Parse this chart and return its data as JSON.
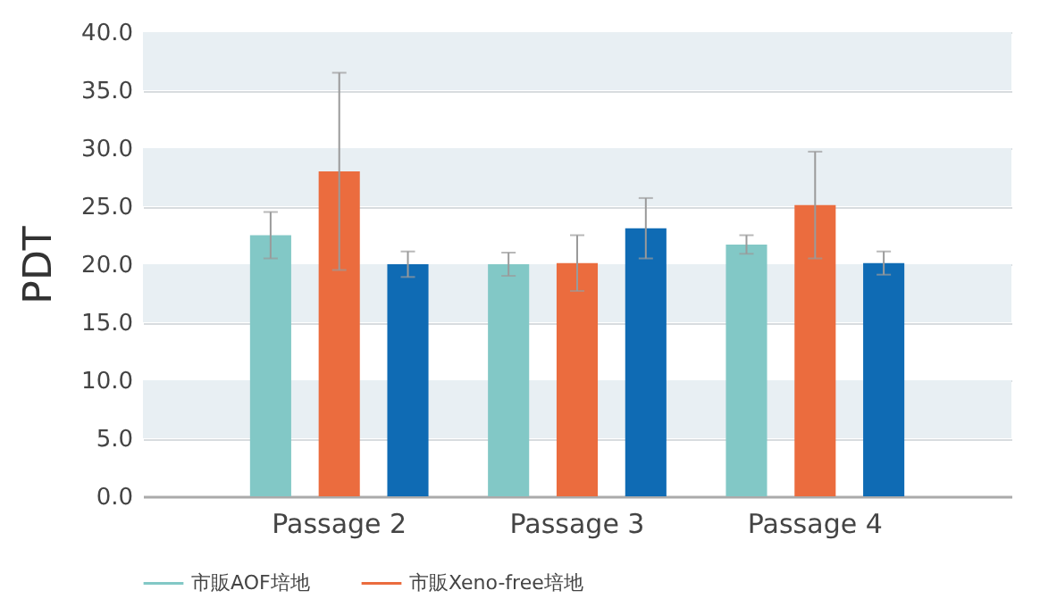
{
  "chart_data": {
    "type": "bar",
    "ylabel": "PDT",
    "categories": [
      "Passage 2",
      "Passage 3",
      "Passage 4"
    ],
    "series": [
      {
        "name": "市販AOF培地",
        "color": "#82c8c6",
        "values": [
          22.5,
          20.0,
          21.7
        ],
        "errors": [
          2.0,
          1.0,
          0.8
        ]
      },
      {
        "name": "市販Xeno-free培地",
        "color": "#eb6c3e",
        "values": [
          28.0,
          20.1,
          25.1
        ],
        "errors": [
          8.5,
          2.4,
          4.6
        ]
      },
      {
        "color": "#0f6bb4",
        "values": [
          20.0,
          23.1,
          20.1
        ],
        "errors": [
          1.1,
          2.6,
          1.0
        ]
      }
    ],
    "ylim": [
      0,
      40
    ],
    "yticks": [
      {
        "value": 0,
        "label": "0.0"
      },
      {
        "value": 5,
        "label": "5.0"
      },
      {
        "value": 10,
        "label": "10.0"
      },
      {
        "value": 15,
        "label": "15.0"
      },
      {
        "value": 20,
        "label": "20.0"
      },
      {
        "value": 25,
        "label": "25.0"
      },
      {
        "value": 30,
        "label": "30.0"
      },
      {
        "value": 35,
        "label": "35.0"
      },
      {
        "value": 40,
        "label": "40.0"
      }
    ],
    "grid": "y",
    "legend": "bottom"
  }
}
